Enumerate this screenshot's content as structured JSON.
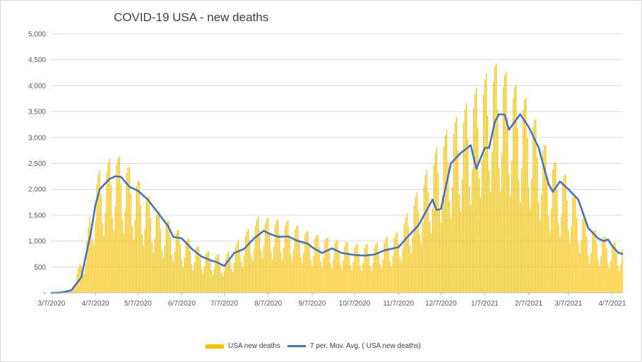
{
  "colors": {
    "bars": "#ffc000",
    "line": "#4472c4",
    "grid": "#d9d9d9",
    "axis": "#bfbfbf"
  },
  "chart_data": {
    "type": "bar",
    "title": "COVID-19 USA - new deaths",
    "xlabel": "",
    "ylabel": "",
    "ylim": [
      0,
      5000
    ],
    "y_ticks": [
      "-",
      "500",
      "1,000",
      "1,500",
      "2,000",
      "2,500",
      "3,000",
      "3,500",
      "4,000",
      "4,500",
      "5,000"
    ],
    "x_tick_labels": [
      "3/7/2020",
      "4/7/2020",
      "5/7/2020",
      "6/7/2020",
      "7/7/2020",
      "8/7/2020",
      "9/7/2020",
      "10/7/2020",
      "11/7/2020",
      "12/7/2020",
      "1/7/2021",
      "2/7/2021",
      "3/7/2021",
      "4/7/2021"
    ],
    "date_range": [
      "2020-03-07",
      "2021-04-14"
    ],
    "grid": true,
    "legend_position": "bottom",
    "series": [
      {
        "name": "USA new deaths",
        "type": "bar",
        "note": "daily values; weekly pattern of low weekend reports",
        "weekly_peak_curve": [
          [
            "2020-03-07",
            5
          ],
          [
            "2020-03-21",
            60
          ],
          [
            "2020-03-31",
            900
          ],
          [
            "2020-04-07",
            2250
          ],
          [
            "2020-04-14",
            2500
          ],
          [
            "2020-04-21",
            2700
          ],
          [
            "2020-04-28",
            2550
          ],
          [
            "2020-05-07",
            2200
          ],
          [
            "2020-05-21",
            1600
          ],
          [
            "2020-06-07",
            1150
          ],
          [
            "2020-06-21",
            850
          ],
          [
            "2020-07-07",
            700
          ],
          [
            "2020-07-21",
            1150
          ],
          [
            "2020-08-01",
            1500
          ],
          [
            "2020-08-07",
            1450
          ],
          [
            "2020-08-21",
            1400
          ],
          [
            "2020-09-07",
            1150
          ],
          [
            "2020-09-21",
            1050
          ],
          [
            "2020-10-07",
            950
          ],
          [
            "2020-10-21",
            950
          ],
          [
            "2020-11-07",
            1200
          ],
          [
            "2020-11-21",
            2000
          ],
          [
            "2020-12-07",
            3000
          ],
          [
            "2020-12-21",
            3500
          ],
          [
            "2021-01-07",
            4200
          ],
          [
            "2021-01-14",
            4450
          ],
          [
            "2021-01-21",
            4300
          ],
          [
            "2021-02-07",
            3700
          ],
          [
            "2021-02-21",
            2700
          ],
          [
            "2021-03-07",
            2200
          ],
          [
            "2021-03-21",
            1300
          ],
          [
            "2021-04-07",
            1000
          ],
          [
            "2021-04-14",
            900
          ]
        ]
      },
      {
        "name": "7 per. Mov. Avg. ( USA new deaths)",
        "type": "line",
        "points": [
          [
            "2020-03-07",
            0
          ],
          [
            "2020-03-14",
            5
          ],
          [
            "2020-03-21",
            50
          ],
          [
            "2020-03-28",
            300
          ],
          [
            "2020-04-04",
            1200
          ],
          [
            "2020-04-07",
            1700
          ],
          [
            "2020-04-10",
            2000
          ],
          [
            "2020-04-17",
            2200
          ],
          [
            "2020-04-21",
            2250
          ],
          [
            "2020-04-25",
            2240
          ],
          [
            "2020-05-01",
            2050
          ],
          [
            "2020-05-07",
            1970
          ],
          [
            "2020-05-14",
            1800
          ],
          [
            "2020-05-21",
            1550
          ],
          [
            "2020-05-28",
            1300
          ],
          [
            "2020-06-01",
            1080
          ],
          [
            "2020-06-07",
            1050
          ],
          [
            "2020-06-14",
            850
          ],
          [
            "2020-06-21",
            700
          ],
          [
            "2020-06-28",
            620
          ],
          [
            "2020-07-01",
            600
          ],
          [
            "2020-07-04",
            560
          ],
          [
            "2020-07-07",
            520
          ],
          [
            "2020-07-14",
            770
          ],
          [
            "2020-07-21",
            850
          ],
          [
            "2020-07-28",
            1050
          ],
          [
            "2020-08-04",
            1200
          ],
          [
            "2020-08-07",
            1150
          ],
          [
            "2020-08-14",
            1080
          ],
          [
            "2020-08-21",
            1090
          ],
          [
            "2020-08-28",
            1000
          ],
          [
            "2020-09-04",
            950
          ],
          [
            "2020-09-07",
            880
          ],
          [
            "2020-09-14",
            770
          ],
          [
            "2020-09-21",
            860
          ],
          [
            "2020-09-28",
            770
          ],
          [
            "2020-10-07",
            730
          ],
          [
            "2020-10-14",
            720
          ],
          [
            "2020-10-21",
            740
          ],
          [
            "2020-10-28",
            820
          ],
          [
            "2020-11-07",
            880
          ],
          [
            "2020-11-14",
            1100
          ],
          [
            "2020-11-21",
            1300
          ],
          [
            "2020-11-28",
            1650
          ],
          [
            "2020-12-01",
            1800
          ],
          [
            "2020-12-04",
            1600
          ],
          [
            "2020-12-07",
            1620
          ],
          [
            "2020-12-14",
            2500
          ],
          [
            "2020-12-21",
            2700
          ],
          [
            "2020-12-28",
            2850
          ],
          [
            "2021-01-01",
            2400
          ],
          [
            "2021-01-07",
            2800
          ],
          [
            "2021-01-10",
            2800
          ],
          [
            "2021-01-14",
            3300
          ],
          [
            "2021-01-17",
            3450
          ],
          [
            "2021-01-21",
            3440
          ],
          [
            "2021-01-24",
            3150
          ],
          [
            "2021-01-28",
            3300
          ],
          [
            "2021-02-01",
            3450
          ],
          [
            "2021-02-07",
            3200
          ],
          [
            "2021-02-14",
            2800
          ],
          [
            "2021-02-21",
            2100
          ],
          [
            "2021-02-24",
            1950
          ],
          [
            "2021-03-01",
            2150
          ],
          [
            "2021-03-07",
            2000
          ],
          [
            "2021-03-14",
            1800
          ],
          [
            "2021-03-21",
            1250
          ],
          [
            "2021-03-28",
            1050
          ],
          [
            "2021-04-01",
            1000
          ],
          [
            "2021-04-04",
            1030
          ],
          [
            "2021-04-07",
            900
          ],
          [
            "2021-04-11",
            780
          ],
          [
            "2021-04-14",
            750
          ]
        ]
      }
    ]
  }
}
